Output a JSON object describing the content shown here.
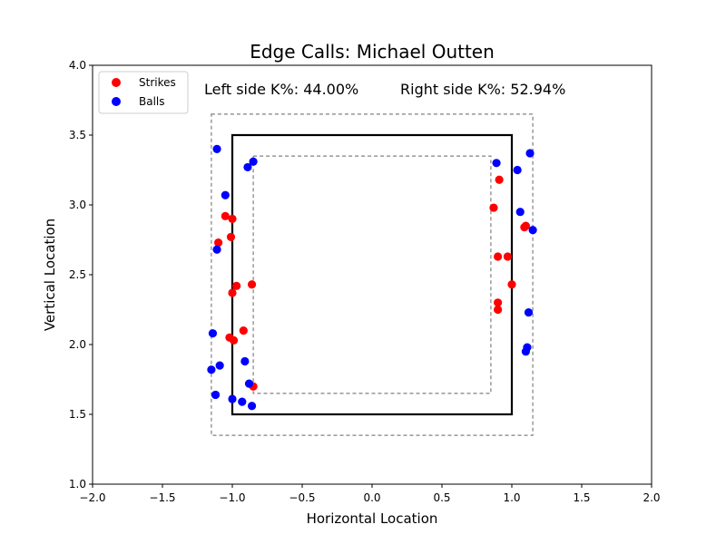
{
  "chart_data": {
    "type": "scatter",
    "title": "Edge Calls: Michael Outten",
    "xlabel": "Horizontal Location",
    "ylabel": "Vertical Location",
    "xlim": [
      -2.0,
      2.0
    ],
    "ylim": [
      1.0,
      4.0
    ],
    "x_ticks": [
      "−2.0",
      "−1.5",
      "−1.0",
      "−0.5",
      "0.0",
      "0.5",
      "1.0",
      "1.5",
      "2.0"
    ],
    "y_ticks": [
      "1.0",
      "1.5",
      "2.0",
      "2.5",
      "3.0",
      "3.5",
      "4.0"
    ],
    "grid": false,
    "legend_placement": "upper-left",
    "annotations": {
      "left": "Left side K%: 44.00%",
      "right": "Right side K%: 52.94%"
    },
    "zones": {
      "strike_zone": {
        "x": [
          -1.0,
          1.0
        ],
        "y": [
          1.5,
          3.5
        ]
      },
      "outer_edge": {
        "x": [
          -1.15,
          1.15
        ],
        "y": [
          1.35,
          3.65
        ]
      },
      "inner_edge": {
        "x": [
          -0.85,
          0.85
        ],
        "y": [
          1.65,
          3.35
        ]
      }
    },
    "series": [
      {
        "name": "Strikes",
        "color": "#ff0000",
        "points": [
          [
            -1.05,
            2.92
          ],
          [
            -1.0,
            2.9
          ],
          [
            -1.01,
            2.77
          ],
          [
            -1.1,
            2.73
          ],
          [
            -0.86,
            2.43
          ],
          [
            -0.97,
            2.42
          ],
          [
            -1.0,
            2.37
          ],
          [
            -0.92,
            2.1
          ],
          [
            -1.02,
            2.05
          ],
          [
            -0.99,
            2.03
          ],
          [
            -0.85,
            1.7
          ],
          [
            0.91,
            3.18
          ],
          [
            0.87,
            2.98
          ],
          [
            1.1,
            2.85
          ],
          [
            1.09,
            2.84
          ],
          [
            0.9,
            2.63
          ],
          [
            0.97,
            2.63
          ],
          [
            1.0,
            2.43
          ],
          [
            0.9,
            2.3
          ],
          [
            0.9,
            2.25
          ]
        ]
      },
      {
        "name": "Balls",
        "color": "#0000ff",
        "points": [
          [
            -1.11,
            3.4
          ],
          [
            -0.85,
            3.31
          ],
          [
            -0.89,
            3.27
          ],
          [
            -1.05,
            3.07
          ],
          [
            -1.11,
            2.68
          ],
          [
            -1.14,
            2.08
          ],
          [
            -0.91,
            1.88
          ],
          [
            -1.09,
            1.85
          ],
          [
            -1.15,
            1.82
          ],
          [
            -0.88,
            1.72
          ],
          [
            -1.12,
            1.64
          ],
          [
            -1.0,
            1.61
          ],
          [
            -0.93,
            1.59
          ],
          [
            -0.86,
            1.56
          ],
          [
            0.89,
            3.3
          ],
          [
            1.13,
            3.37
          ],
          [
            1.04,
            3.25
          ],
          [
            1.06,
            2.95
          ],
          [
            1.15,
            2.82
          ],
          [
            1.12,
            2.23
          ],
          [
            1.11,
            1.98
          ],
          [
            1.1,
            1.95
          ]
        ]
      }
    ]
  }
}
